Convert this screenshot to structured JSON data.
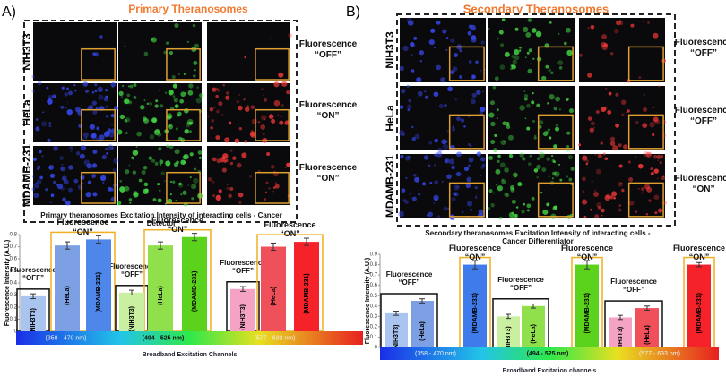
{
  "panel_a": {
    "label": "A)",
    "title": "Primary Theranosomes",
    "rows": [
      "NIH3T3",
      "HeLa",
      "MDAMB-231"
    ],
    "row_states": [
      "Fluorescence “OFF”",
      "Fluorescence “ON”",
      "Fluorescence “ON”"
    ]
  },
  "panel_b": {
    "label": "B)",
    "title": "Secondary Theranosomes",
    "rows": [
      "NIH3T3",
      "HeLa",
      "MDAMB-231"
    ],
    "row_states": [
      "Fluorescence “OFF”",
      "Fluorescence “OFF”",
      "Fluorescence “ON”"
    ]
  },
  "chart_data": [
    {
      "type": "bar",
      "title": "Primary theranosomes  Excitation Intensity of interacting cells - Cancer Detector",
      "ylabel": "Fluorescence Intensity (A.U.)",
      "xlabel": "Broadband Excitation Channels",
      "categories": [
        "(NIH3T3)",
        "(HeLa)",
        "(MDAMB-231)",
        "(NIH3T3)",
        "(HeLa)",
        "(MDAMB-231)",
        "(NIH3T3)",
        "(HeLa)",
        "(MDAMB-231)"
      ],
      "values": [
        0.29,
        0.71,
        0.76,
        0.32,
        0.71,
        0.78,
        0.35,
        0.7,
        0.74
      ],
      "errors": [
        0.02,
        0.03,
        0.03,
        0.02,
        0.03,
        0.03,
        0.02,
        0.03,
        0.03
      ],
      "colors": [
        "#a9c4ef",
        "#7d9fe4",
        "#4f86ea",
        "#c8f0a0",
        "#8fe04a",
        "#5bd21b",
        "#f4a3c4",
        "#f0505a",
        "#f5222a"
      ],
      "annotations": [
        "Fluorescence “OFF”",
        "Fluorescence “ON”",
        "Fluorescence “OFF”",
        "Fluorescence “ON”",
        "Fluorescence “OFF”",
        "Fluorescence “ON”"
      ],
      "channels": [
        "(358 - 470 nm)",
        "(494 - 525 nm)",
        "(577 - 633 nm)"
      ],
      "ylim": [
        0,
        0.8
      ],
      "yticks": [
        0,
        0.1,
        0.2,
        0.3,
        0.4,
        0.5,
        0.6,
        0.7,
        0.8
      ]
    },
    {
      "type": "bar",
      "title": "Secondary theranosomes Excitation Intensity of interacting cells - Cancer Differentiator",
      "ylabel": "Fluorescence Intensity (A.U.)",
      "xlabel": "Broadband Excitation channels",
      "categories": [
        "(NIH3T3)",
        "(HeLa)",
        "(MDAMB-231)",
        "(NIH3T3)",
        "(HeLa)",
        "(MDAMB-231)",
        "(NIH3T3)",
        "(HeLa)",
        "(MDAMB-231)"
      ],
      "values": [
        0.33,
        0.45,
        0.8,
        0.3,
        0.4,
        0.8,
        0.29,
        0.38,
        0.8
      ],
      "errors": [
        0.02,
        0.02,
        0.04,
        0.02,
        0.02,
        0.04,
        0.02,
        0.02,
        0.02
      ],
      "colors": [
        "#a9c4ef",
        "#7d9fe4",
        "#3f7bea",
        "#c8f0a0",
        "#8fe04a",
        "#5bd21b",
        "#f4a3c4",
        "#f0505a",
        "#f5222a"
      ],
      "annotations": [
        "Fluorescence “OFF”",
        "Fluorescence “ON”",
        "Fluorescence “OFF”",
        "Fluorescence “ON”",
        "Fluorescence “OFF”",
        "Fluorescence “ON”"
      ],
      "channels": [
        "(358 - 470 nm)",
        "(494 - 525 nm)",
        "(577 - 633 nm)"
      ],
      "ylim": [
        0,
        0.9
      ],
      "yticks": [
        0,
        0.1,
        0.2,
        0.3,
        0.4,
        0.5,
        0.6,
        0.7,
        0.8,
        0.9
      ]
    }
  ]
}
